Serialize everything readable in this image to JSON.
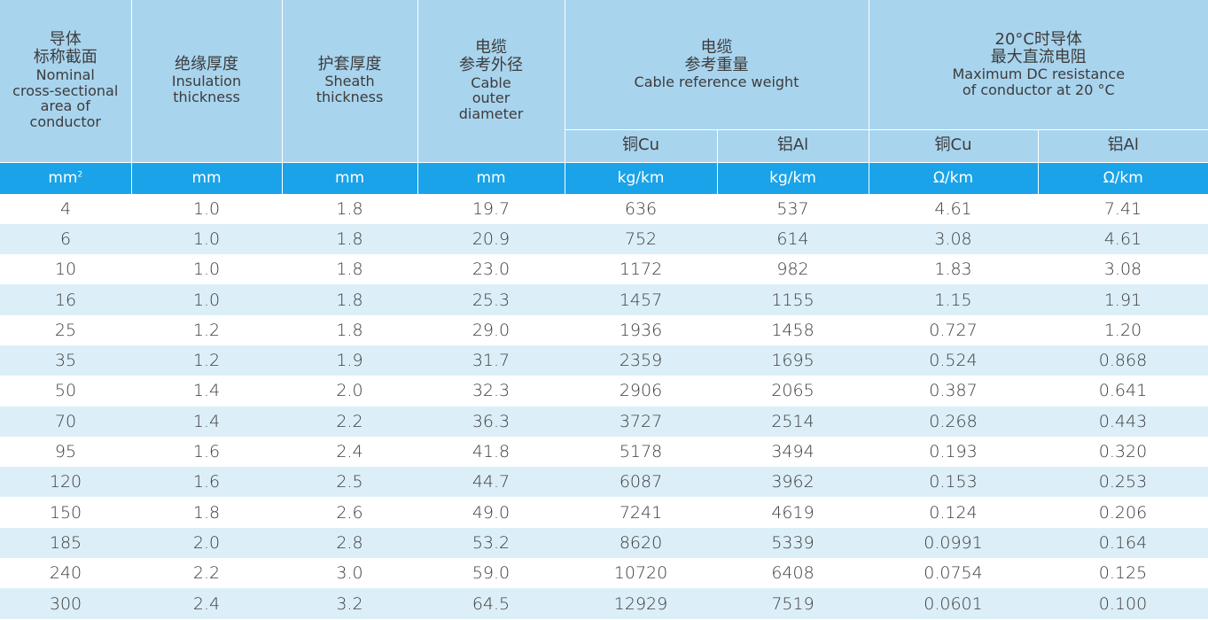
{
  "header": {
    "col1": {
      "zh1": "导体",
      "zh2": "标称截面",
      "en1": "Nominal",
      "en2": "cross-sectional",
      "en3": "area of",
      "en4": "conductor"
    },
    "col2": {
      "zh": "绝缘厚度",
      "en1": "Insulation",
      "en2": "thickness"
    },
    "col3": {
      "zh": "护套厚度",
      "en1": "Sheath",
      "en2": "thickness"
    },
    "col4": {
      "zh1": "电缆",
      "zh2": "参考外径",
      "en1": "Cable",
      "en2": "outer",
      "en3": "diameter"
    },
    "weight": {
      "zh1": "电缆",
      "zh2": "参考重量",
      "en": "Cable reference weight",
      "cu": "铜Cu",
      "al": "铝Al"
    },
    "resistance": {
      "zh1": "20°C时导体",
      "zh2": "最大直流电阻",
      "en1": "Maximum DC resistance",
      "en2": "of conductor at 20 °C",
      "cu": "铜Cu",
      "al": "铝Al"
    }
  },
  "units": {
    "area_base": "mm",
    "area_sup": "2",
    "insulation": "mm",
    "sheath": "mm",
    "diameter": "mm",
    "weight_cu": "kg/km",
    "weight_al": "kg/km",
    "res_cu": "Ω/km",
    "res_al": "Ω/km"
  },
  "rows": [
    [
      "4",
      "1.0",
      "1.8",
      "19.7",
      "636",
      "537",
      "4.61",
      "7.41"
    ],
    [
      "6",
      "1.0",
      "1.8",
      "20.9",
      "752",
      "614",
      "3.08",
      "4.61"
    ],
    [
      "10",
      "1.0",
      "1.8",
      "23.0",
      "1172",
      "982",
      "1.83",
      "3.08"
    ],
    [
      "16",
      "1.0",
      "1.8",
      "25.3",
      "1457",
      "1155",
      "1.15",
      "1.91"
    ],
    [
      "25",
      "1.2",
      "1.8",
      "29.0",
      "1936",
      "1458",
      "0.727",
      "1.20"
    ],
    [
      "35",
      "1.2",
      "1.9",
      "31.7",
      "2359",
      "1695",
      "0.524",
      "0.868"
    ],
    [
      "50",
      "1.4",
      "2.0",
      "32.3",
      "2906",
      "2065",
      "0.387",
      "0.641"
    ],
    [
      "70",
      "1.4",
      "2.2",
      "36.3",
      "3727",
      "2514",
      "0.268",
      "0.443"
    ],
    [
      "95",
      "1.6",
      "2.4",
      "41.8",
      "5178",
      "3494",
      "0.193",
      "0.320"
    ],
    [
      "120",
      "1.6",
      "2.5",
      "44.7",
      "6087",
      "3962",
      "0.153",
      "0.253"
    ],
    [
      "150",
      "1.8",
      "2.6",
      "49.0",
      "7241",
      "4619",
      "0.124",
      "0.206"
    ],
    [
      "185",
      "2.0",
      "2.8",
      "53.2",
      "8620",
      "5339",
      "0.0991",
      "0.164"
    ],
    [
      "240",
      "2.2",
      "3.0",
      "59.0",
      "10720",
      "6408",
      "0.0754",
      "0.125"
    ],
    [
      "300",
      "2.4",
      "3.2",
      "64.5",
      "12929",
      "7519",
      "0.0601",
      "0.100"
    ]
  ],
  "colors": {
    "header_bg": "#a9d4ee",
    "unit_bar_bg": "#1aa3e8",
    "stripe_bg": "#dceff9"
  }
}
